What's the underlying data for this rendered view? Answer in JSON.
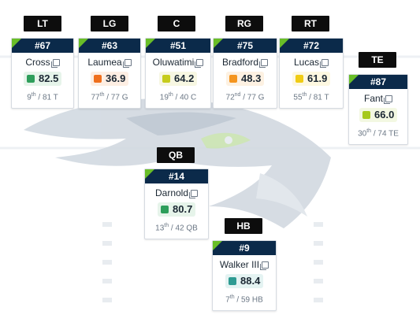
{
  "colors": {
    "navy": "#0b2a4a",
    "accent_green": "#69be28",
    "grade_green": "#2e9e5b",
    "grade_orange": "#ef6f1d",
    "grade_yellow_green": "#c6cc1c",
    "grade_light_orange": "#f4951f",
    "grade_yellow": "#f0cc14",
    "grade_lime": "#a6c91b",
    "grade_teal": "#2e9b92"
  },
  "background_logo": "seahawks-logo",
  "players": [
    {
      "pos": "LT",
      "number": "#67",
      "name": "Cross",
      "grade": "82.5",
      "rank": "9",
      "suffix": "th",
      "of": "/ 81 T",
      "color": "#2e9e5b",
      "bg": "#e6f4ea"
    },
    {
      "pos": "LG",
      "number": "#63",
      "name": "Laumea",
      "grade": "36.9",
      "rank": "77",
      "suffix": "th",
      "of": "/ 77 G",
      "color": "#ef6f1d",
      "bg": "#fdeee3"
    },
    {
      "pos": "C",
      "number": "#51",
      "name": "Oluwatimi",
      "grade": "64.2",
      "rank": "19",
      "suffix": "th",
      "of": "/ 40 C",
      "color": "#c6cc1c",
      "bg": "#f7f7e2"
    },
    {
      "pos": "RG",
      "number": "#75",
      "name": "Bradford",
      "grade": "48.3",
      "rank": "72",
      "suffix": "nd",
      "of": "/ 77 G",
      "color": "#f4951f",
      "bg": "#fdf1e2"
    },
    {
      "pos": "RT",
      "number": "#72",
      "name": "Lucas",
      "grade": "61.9",
      "rank": "55",
      "suffix": "th",
      "of": "/ 81 T",
      "color": "#f0cc14",
      "bg": "#fdf8e1"
    },
    {
      "pos": "TE",
      "number": "#87",
      "name": "Fant",
      "grade": "66.0",
      "rank": "30",
      "suffix": "th",
      "of": "/ 74 TE",
      "color": "#a6c91b",
      "bg": "#f3f8e2"
    },
    {
      "pos": "QB",
      "number": "#14",
      "name": "Darnold",
      "grade": "80.7",
      "rank": "13",
      "suffix": "th",
      "of": "/ 42 QB",
      "color": "#2e9e5b",
      "bg": "#e6f4ea"
    },
    {
      "pos": "HB",
      "number": "#9",
      "name": "Walker III",
      "grade": "88.4",
      "rank": "7",
      "suffix": "th",
      "of": "/ 59 HB",
      "color": "#2e9b92",
      "bg": "#e4f3f2"
    }
  ]
}
